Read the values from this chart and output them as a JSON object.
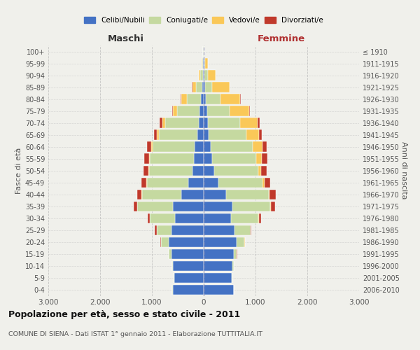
{
  "age_groups": [
    "0-4",
    "5-9",
    "10-14",
    "15-19",
    "20-24",
    "25-29",
    "30-34",
    "35-39",
    "40-44",
    "45-49",
    "50-54",
    "55-59",
    "60-64",
    "65-69",
    "70-74",
    "75-79",
    "80-84",
    "85-89",
    "90-94",
    "95-99",
    "100+"
  ],
  "birth_years": [
    "2006-2010",
    "2001-2005",
    "1996-2000",
    "1991-1995",
    "1986-1990",
    "1981-1985",
    "1976-1980",
    "1971-1975",
    "1966-1970",
    "1961-1965",
    "1956-1960",
    "1951-1955",
    "1946-1950",
    "1941-1945",
    "1936-1940",
    "1931-1935",
    "1926-1930",
    "1921-1925",
    "1916-1920",
    "1911-1915",
    "≤ 1910"
  ],
  "males": {
    "celibi": [
      600,
      570,
      590,
      620,
      680,
      620,
      550,
      600,
      430,
      300,
      220,
      190,
      170,
      120,
      100,
      80,
      60,
      30,
      15,
      10,
      5
    ],
    "coniugati": [
      5,
      8,
      20,
      50,
      140,
      290,
      490,
      680,
      760,
      800,
      830,
      850,
      820,
      740,
      640,
      430,
      270,
      120,
      50,
      15,
      5
    ],
    "vedovi": [
      0,
      0,
      0,
      0,
      2,
      2,
      3,
      5,
      8,
      10,
      15,
      20,
      30,
      40,
      60,
      80,
      100,
      70,
      30,
      15,
      3
    ],
    "divorziati": [
      0,
      0,
      0,
      5,
      15,
      30,
      40,
      70,
      90,
      90,
      100,
      90,
      80,
      60,
      50,
      20,
      10,
      5,
      0,
      0,
      0
    ]
  },
  "females": {
    "nubili": [
      580,
      540,
      560,
      580,
      640,
      600,
      530,
      560,
      430,
      290,
      200,
      160,
      130,
      100,
      80,
      65,
      45,
      25,
      15,
      10,
      5
    ],
    "coniugate": [
      5,
      10,
      20,
      55,
      150,
      300,
      530,
      720,
      820,
      840,
      850,
      860,
      820,
      720,
      620,
      430,
      280,
      140,
      60,
      20,
      5
    ],
    "vedove": [
      0,
      0,
      0,
      2,
      3,
      5,
      8,
      15,
      25,
      40,
      60,
      100,
      180,
      250,
      340,
      380,
      380,
      330,
      150,
      50,
      10
    ],
    "divorziate": [
      0,
      0,
      0,
      5,
      10,
      20,
      40,
      80,
      120,
      120,
      110,
      110,
      90,
      50,
      45,
      20,
      10,
      5,
      0,
      0,
      0
    ]
  },
  "colors": {
    "celibi": "#4472C4",
    "coniugati": "#C5D9A0",
    "vedovi": "#FAC858",
    "divorziati": "#C0392B"
  },
  "xlim": 3000,
  "title": "Popolazione per età, sesso e stato civile - 2011",
  "subtitle": "COMUNE DI SIENA - Dati ISTAT 1° gennaio 2011 - Elaborazione TUTTITALIA.IT",
  "ylabel_left": "Fasce di età",
  "ylabel_right": "Anni di nascita",
  "label_maschi": "Maschi",
  "label_femmine": "Femmine",
  "legend_labels": [
    "Celibi/Nubili",
    "Coniugati/e",
    "Vedovi/e",
    "Divorziati/e"
  ],
  "bg_color": "#f0f0eb",
  "bar_height": 0.85
}
